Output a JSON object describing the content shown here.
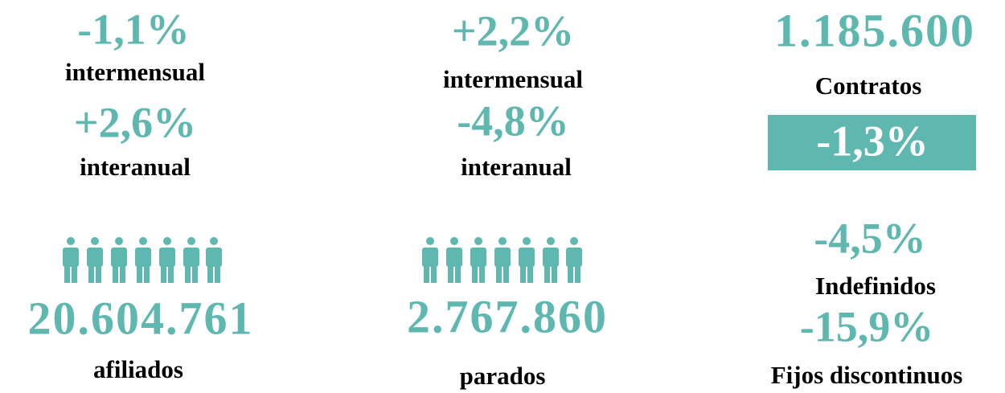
{
  "afiliados": {
    "monthly_change": "-1,1%",
    "monthly_label": "intermensual",
    "yearly_change": "+2,6%",
    "yearly_label": "interanual",
    "total": "20.604.761",
    "total_label": "afiliados"
  },
  "parados": {
    "monthly_change": "+2,2%",
    "monthly_label": "intermensual",
    "yearly_change": "-4,8%",
    "yearly_label": "interanual",
    "total": "2.767.860",
    "total_label": "parados"
  },
  "contratos": {
    "total": "1.185.600",
    "total_label": "Contratos",
    "change": "-1,3%",
    "indefinidos_change": "-4,5%",
    "indefinidos_label": "Indefinidos",
    "fijos_change": "-15,9%",
    "fijos_label": "Fijos discontinuos"
  }
}
